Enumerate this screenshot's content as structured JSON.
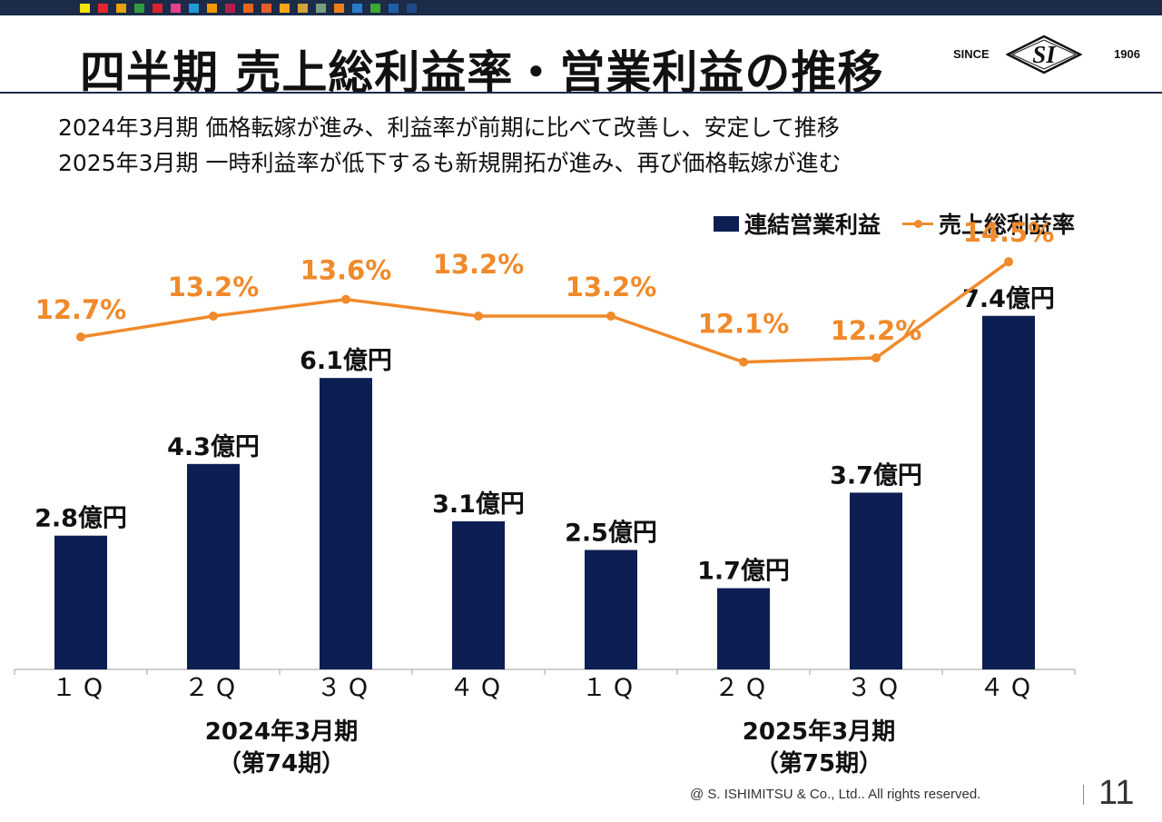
{
  "header": {
    "palette": [
      "#f5e400",
      "#e5262b",
      "#e8a200",
      "#2e9c3e",
      "#d8232a",
      "#e83e8c",
      "#1e9ad6",
      "#f39800",
      "#b01f4c",
      "#e8641b",
      "#ea5d2a",
      "#f4a816",
      "#d5a13a",
      "#7a9e7e",
      "#ee7f1a",
      "#2a7cc7",
      "#3fa535",
      "#1f5fa8",
      "#1c4b8a"
    ]
  },
  "title": "四半期 売上総利益率・営業利益の推移",
  "logo": {
    "since": "SINCE",
    "mark": "SI",
    "year": "1906"
  },
  "summary": [
    "2024年3月期 価格転嫁が進み、利益率が前期に比べて改善し、安定して推移",
    "2025年3月期 一時利益率が低下するも新規開拓が進み、再び価格転嫁が進む"
  ],
  "legend": {
    "bars": "連結営業利益",
    "line": "売上総利益率"
  },
  "colors": {
    "bar": "#0d1e52",
    "line": "#f08a2b",
    "text": "#111111",
    "header": "#1c2b48"
  },
  "chart_data": {
    "type": "bar",
    "categories": [
      "１Q",
      "２Q",
      "３Q",
      "４Q",
      "１Q",
      "２Q",
      "３Q",
      "４Q"
    ],
    "series": [
      {
        "name": "連結営業利益",
        "type": "bar",
        "unit": "億円",
        "values": [
          2.8,
          4.3,
          6.1,
          3.1,
          2.5,
          1.7,
          3.7,
          7.4
        ],
        "labels": [
          "2.8億円",
          "4.3億円",
          "6.1億円",
          "3.1億円",
          "2.5億円",
          "1.7億円",
          "3.7億円",
          "7.4億円"
        ]
      },
      {
        "name": "売上総利益率",
        "type": "line",
        "unit": "%",
        "values": [
          12.7,
          13.2,
          13.6,
          13.2,
          13.2,
          12.1,
          12.2,
          14.5
        ],
        "labels": [
          "12.7%",
          "13.2%",
          "13.6%",
          "13.2%",
          "13.2%",
          "12.1%",
          "12.2%",
          "14.5%"
        ]
      }
    ],
    "groups": [
      {
        "label": "2024年3月期",
        "sub": "（第74期）"
      },
      {
        "label": "2025年3月期",
        "sub": "（第75期）"
      }
    ],
    "legend_position": "top-right",
    "grid": false
  },
  "footer": {
    "copyright": "@ S. ISHIMITSU & Co., Ltd.. All rights reserved.",
    "page": "11"
  }
}
